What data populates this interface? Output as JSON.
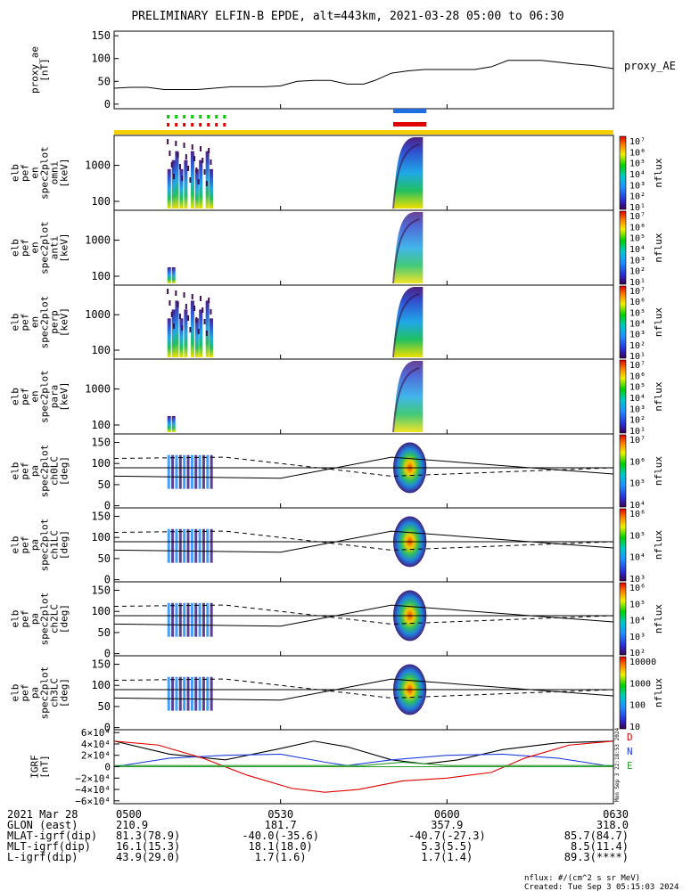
{
  "title": "PRELIMINARY ELFIN-B EPDE, alt=443km, 2021-03-28 05:00 to 06:30",
  "colors": {
    "red": "#e00000",
    "green": "#00cc00",
    "blue": "#1f6fe0",
    "yellow": "#f5d000",
    "line": "#000000"
  },
  "chart_data": {
    "type": "multi-panel time series / spectrogram",
    "time_range_utc": [
      "05:00",
      "06:30"
    ],
    "panels": [
      {
        "name": "proxy_ae",
        "type": "line",
        "ylabel": "proxy_ae",
        "yunit": "[nT]",
        "ylim": [
          -10,
          160
        ],
        "yticks": [
          "150",
          "100",
          "50",
          "0"
        ],
        "legend": "proxy_AE",
        "series": {
          "t": [
            0,
            3,
            6,
            9,
            12,
            15,
            18,
            21,
            24,
            27,
            30,
            33,
            36,
            39,
            42,
            45,
            47,
            50,
            53,
            56,
            59,
            62,
            65,
            68,
            71,
            74,
            77,
            80,
            83,
            86,
            90
          ],
          "v": [
            35,
            37,
            37,
            32,
            32,
            32,
            35,
            38,
            38,
            38,
            40,
            50,
            52,
            52,
            44,
            44,
            52,
            68,
            73,
            76,
            76,
            76,
            76,
            82,
            96,
            96,
            96,
            92,
            88,
            85,
            78
          ]
        }
      },
      {
        "name": "elb_pef_en_spec2plot_omni",
        "type": "heatmap",
        "ylabel": "elb pef en spec2plot omni",
        "yunit": "[keV]",
        "yticks": [
          "1000",
          "100"
        ],
        "cbar_label": "nflux",
        "cbar_ticks": [
          "10⁷",
          "10⁶",
          "10⁵",
          "10⁴",
          "10³",
          "10²",
          "10¹"
        ]
      },
      {
        "name": "elb_pef_en_spec2plot_anti",
        "type": "heatmap",
        "ylabel": "elb pef en spec2plot anti",
        "yunit": "[keV]",
        "yticks": [
          "1000",
          "100"
        ],
        "cbar_label": "nflux",
        "cbar_ticks": [
          "10⁷",
          "10⁶",
          "10⁵",
          "10⁴",
          "10³",
          "10²",
          "10¹"
        ]
      },
      {
        "name": "elb_pef_en_spec2plot_perp",
        "type": "heatmap",
        "ylabel": "elb pef en spec2plot perp",
        "yunit": "[keV]",
        "yticks": [
          "1000",
          "100"
        ],
        "cbar_label": "nflux",
        "cbar_ticks": [
          "10⁷",
          "10⁶",
          "10⁵",
          "10⁴",
          "10³",
          "10²",
          "10¹"
        ]
      },
      {
        "name": "elb_pef_en_spec2plot_para",
        "type": "heatmap",
        "ylabel": "elb pef en spec2plot para",
        "yunit": "[keV]",
        "yticks": [
          "1000",
          "100"
        ],
        "cbar_label": "nflux",
        "cbar_ticks": [
          "10⁷",
          "10⁶",
          "10⁵",
          "10⁴",
          "10³",
          "10²",
          "10¹"
        ]
      },
      {
        "name": "elb_pef_pa_spec2plot_ch0LC",
        "type": "heatmap",
        "ylabel": "elb pef pa spec2plot ch0LC",
        "yunit": "[deg]",
        "yticks": [
          "150",
          "100",
          "50",
          "0"
        ],
        "cbar_label": "nflux",
        "cbar_ticks": [
          "10⁷",
          "10⁶",
          "10⁵",
          "10⁴"
        ]
      },
      {
        "name": "elb_pef_pa_spec2plot_ch1LC",
        "type": "heatmap",
        "ylabel": "elb pef pa spec2plot ch1LC",
        "yunit": "[deg]",
        "yticks": [
          "150",
          "100",
          "50",
          "0"
        ],
        "cbar_label": "nflux",
        "cbar_ticks": [
          "10⁶",
          "10⁵",
          "10⁴",
          "10³"
        ]
      },
      {
        "name": "elb_pef_pa_spec2plot_ch2LC",
        "type": "heatmap",
        "ylabel": "elb pef pa spec2plot ch2LC",
        "yunit": "[deg]",
        "yticks": [
          "150",
          "100",
          "50",
          "0"
        ],
        "cbar_label": "nflux",
        "cbar_ticks": [
          "10⁶",
          "10⁵",
          "10⁴",
          "10³",
          "10²"
        ]
      },
      {
        "name": "elb_pef_pa_spec2plot_ch3LC",
        "type": "heatmap",
        "ylabel": "elb pef pa spec2plot ch3LC",
        "yunit": "[deg]",
        "yticks": [
          "150",
          "100",
          "50",
          "0"
        ],
        "cbar_label": "nflux",
        "cbar_ticks": [
          "10000",
          "1000",
          "100",
          "10"
        ]
      },
      {
        "name": "IGRF",
        "type": "line",
        "ylabel": "IGRF",
        "yunit": "[nT]",
        "ylim": [
          -65000,
          65000
        ],
        "yticks": [
          "6×10⁴",
          "4×10⁴",
          "2×10⁴",
          "0",
          "−2×10⁴",
          "−4×10⁴",
          "−6×10⁴"
        ],
        "legend": [
          "D",
          "N",
          "E"
        ],
        "series": [
          {
            "name": "black",
            "t": [
              0,
              10,
              20,
              30,
              36,
              42,
              50,
              56,
              62,
              70,
              80,
              90
            ],
            "v": [
              45000,
              22000,
              12000,
              32000,
              45000,
              35000,
              12000,
              5000,
              12000,
              30000,
              42000,
              45000
            ]
          },
          {
            "name": "blue",
            "t": [
              0,
              10,
              20,
              30,
              38,
              42,
              50,
              60,
              70,
              80,
              90
            ],
            "v": [
              0,
              15000,
              20000,
              22000,
              8000,
              2000,
              12000,
              20000,
              22000,
              15000,
              0
            ]
          },
          {
            "name": "red",
            "t": [
              0,
              8,
              16,
              24,
              32,
              38,
              44,
              52,
              60,
              68,
              74,
              82,
              90
            ],
            "v": [
              45000,
              38000,
              15000,
              -15000,
              -38000,
              -45000,
              -40000,
              -25000,
              -20000,
              -10000,
              15000,
              38000,
              45000
            ]
          },
          {
            "name": "green",
            "t": [
              0,
              30,
              45,
              52,
              60,
              75,
              90
            ],
            "v": [
              2000,
              2000,
              2000,
              8000,
              2000,
              2000,
              2000
            ]
          }
        ]
      }
    ]
  },
  "footer": {
    "rows": [
      {
        "label": "2021 Mar 28",
        "values": [
          "0500",
          "0530",
          "0600",
          "0630"
        ]
      },
      {
        "label": "GLON (east)",
        "values": [
          "210.9",
          "181.7",
          "357.9",
          "318.0"
        ]
      },
      {
        "label": "MLAT-igrf(dip)",
        "values": [
          "81.3(78.9)",
          "-40.0(-35.6)",
          "-40.7(-27.3)",
          "85.7(84.7)"
        ]
      },
      {
        "label": "MLT-igrf(dip)",
        "values": [
          "16.1(15.3)",
          "18.1(18.0)",
          "5.3(5.5)",
          "8.5(11.4)"
        ]
      },
      {
        "label": "L-igrf(dip)",
        "values": [
          "43.9(29.0)",
          "1.7(1.6)",
          "1.7(1.4)",
          "89.3(****)"
        ]
      }
    ],
    "nflux_note": "nflux: #/(cm^2 s sr MeV)",
    "created": "Created: Tue Sep  3 05:15:03 2024",
    "side_stamp": "Mon Sep  3 22:18:53 2024"
  }
}
